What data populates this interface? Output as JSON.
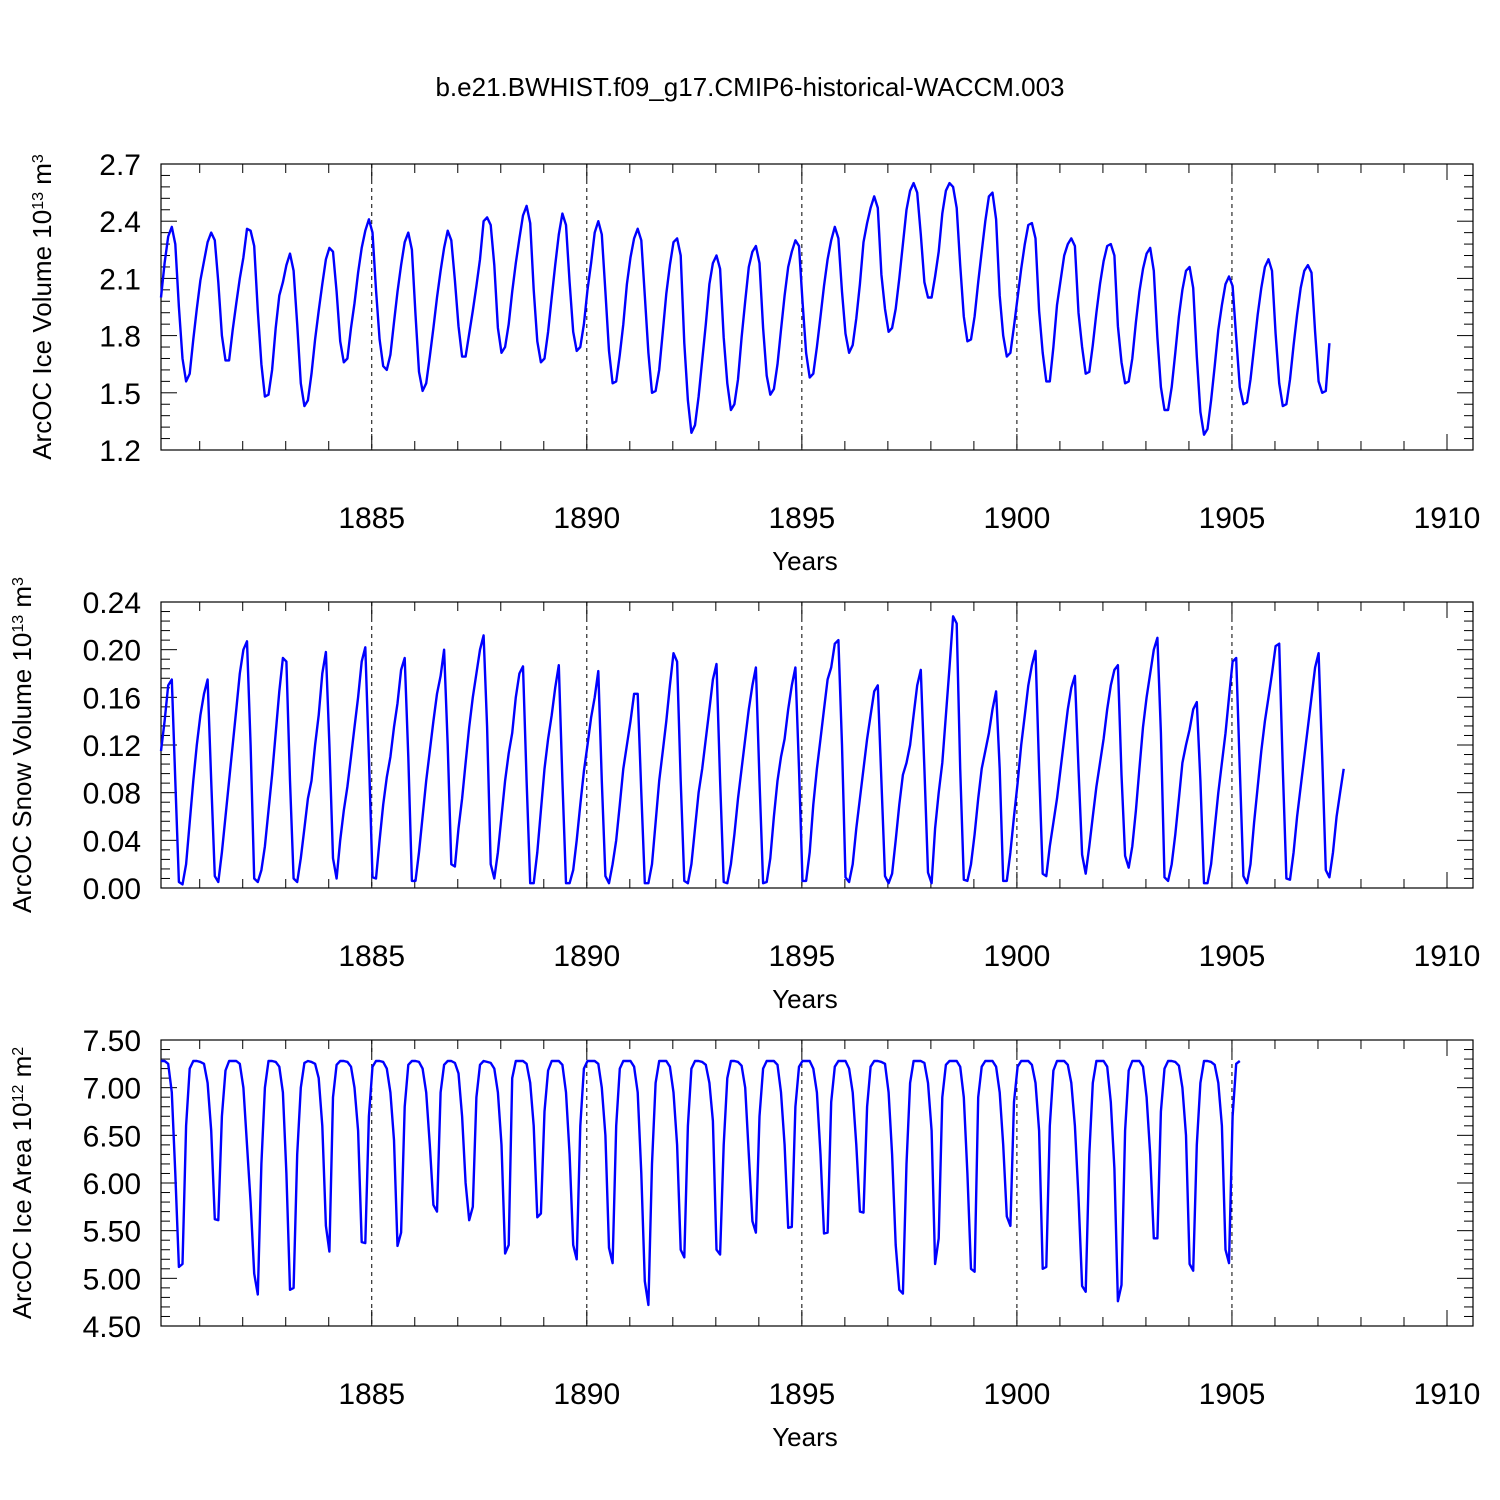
{
  "title": "b.e21.BWHIST.f09_g17.CMIP6-historical-WACCM.003",
  "series_color": "#0000ff",
  "chart_data": [
    {
      "type": "line",
      "name": "ice-volume",
      "title": "b.e21.BWHIST.f09_g17.CMIP6-historical-WACCM.003",
      "ylabel": "ArcOC Ice Volume 10",
      "ylabel_exp": "13",
      "ylabel_unit": " m",
      "ylabel_unit_exp": "3",
      "xlabel": "Years",
      "xlim": [
        1880.1,
        1910.0
      ],
      "ylim": [
        1.2,
        2.7
      ],
      "yticks": [
        "1.2",
        "1.5",
        "1.8",
        "2.1",
        "2.4",
        "2.7"
      ],
      "xticks": [
        "1885",
        "1890",
        "1895",
        "1900",
        "1905",
        "1910"
      ],
      "grid_x": [
        1885,
        1890,
        1895,
        1900,
        1905
      ],
      "x_start": 1880.1,
      "x_step": 0.08333,
      "values": [
        2.0,
        2.18,
        2.32,
        2.37,
        2.28,
        1.95,
        1.68,
        1.56,
        1.6,
        1.78,
        1.94,
        2.09,
        2.19,
        2.29,
        2.34,
        2.3,
        2.08,
        1.8,
        1.67,
        1.67,
        1.83,
        1.97,
        2.1,
        2.21,
        2.36,
        2.35,
        2.27,
        1.93,
        1.65,
        1.48,
        1.49,
        1.62,
        1.84,
        2.01,
        2.08,
        2.17,
        2.23,
        2.14,
        1.86,
        1.55,
        1.43,
        1.46,
        1.6,
        1.78,
        1.93,
        2.07,
        2.2,
        2.26,
        2.24,
        2.03,
        1.77,
        1.66,
        1.68,
        1.84,
        1.97,
        2.13,
        2.26,
        2.35,
        2.41,
        2.34,
        2.04,
        1.78,
        1.64,
        1.62,
        1.7,
        1.87,
        2.03,
        2.17,
        2.29,
        2.34,
        2.25,
        1.91,
        1.61,
        1.51,
        1.55,
        1.69,
        1.84,
        2.0,
        2.14,
        2.26,
        2.35,
        2.3,
        2.09,
        1.85,
        1.69,
        1.69,
        1.81,
        1.93,
        2.06,
        2.2,
        2.4,
        2.42,
        2.38,
        2.17,
        1.84,
        1.71,
        1.74,
        1.86,
        2.03,
        2.18,
        2.31,
        2.43,
        2.48,
        2.39,
        2.04,
        1.77,
        1.66,
        1.68,
        1.82,
        2.0,
        2.17,
        2.33,
        2.44,
        2.38,
        2.08,
        1.82,
        1.72,
        1.74,
        1.86,
        2.04,
        2.18,
        2.34,
        2.4,
        2.33,
        2.03,
        1.72,
        1.55,
        1.56,
        1.7,
        1.86,
        2.07,
        2.21,
        2.31,
        2.36,
        2.3,
        2.01,
        1.71,
        1.5,
        1.51,
        1.62,
        1.82,
        2.02,
        2.17,
        2.29,
        2.31,
        2.22,
        1.76,
        1.46,
        1.29,
        1.33,
        1.48,
        1.67,
        1.86,
        2.07,
        2.18,
        2.22,
        2.15,
        1.79,
        1.55,
        1.41,
        1.44,
        1.57,
        1.79,
        1.98,
        2.16,
        2.24,
        2.27,
        2.18,
        1.84,
        1.59,
        1.49,
        1.52,
        1.65,
        1.83,
        2.01,
        2.16,
        2.24,
        2.3,
        2.27,
        1.98,
        1.71,
        1.58,
        1.6,
        1.74,
        1.9,
        2.06,
        2.2,
        2.3,
        2.37,
        2.31,
        2.03,
        1.81,
        1.71,
        1.75,
        1.89,
        2.07,
        2.29,
        2.39,
        2.47,
        2.53,
        2.47,
        2.12,
        1.94,
        1.82,
        1.84,
        1.94,
        2.1,
        2.28,
        2.46,
        2.56,
        2.6,
        2.55,
        2.33,
        2.08,
        2.0,
        2.0,
        2.11,
        2.24,
        2.44,
        2.56,
        2.6,
        2.58,
        2.47,
        2.17,
        1.9,
        1.77,
        1.78,
        1.9,
        2.08,
        2.24,
        2.4,
        2.53,
        2.55,
        2.41,
        2.01,
        1.8,
        1.69,
        1.71,
        1.85,
        2.0,
        2.15,
        2.28,
        2.38,
        2.39,
        2.31,
        1.93,
        1.71,
        1.56,
        1.56,
        1.74,
        1.96,
        2.09,
        2.22,
        2.28,
        2.31,
        2.27,
        1.92,
        1.74,
        1.6,
        1.61,
        1.75,
        1.92,
        2.07,
        2.19,
        2.27,
        2.28,
        2.22,
        1.85,
        1.66,
        1.55,
        1.56,
        1.68,
        1.87,
        2.03,
        2.15,
        2.23,
        2.26,
        2.14,
        1.79,
        1.53,
        1.41,
        1.41,
        1.53,
        1.71,
        1.9,
        2.04,
        2.14,
        2.16,
        2.05,
        1.69,
        1.4,
        1.28,
        1.31,
        1.46,
        1.64,
        1.83,
        1.96,
        2.07,
        2.11,
        2.06,
        1.79,
        1.53,
        1.44,
        1.45,
        1.57,
        1.74,
        1.91,
        2.05,
        2.16,
        2.2,
        2.14,
        1.81,
        1.55,
        1.43,
        1.44,
        1.57,
        1.75,
        1.91,
        2.05,
        2.14,
        2.17,
        2.13,
        1.82,
        1.56,
        1.5,
        1.51,
        1.76
      ]
    },
    {
      "type": "line",
      "name": "snow-volume",
      "ylabel": "ArcOC Snow Volume 10",
      "ylabel_exp": "13",
      "ylabel_unit": " m",
      "ylabel_unit_exp": "3",
      "xlabel": "Years",
      "xlim": [
        1880.1,
        1910.0
      ],
      "ylim": [
        0.0,
        0.24
      ],
      "yticks": [
        "0.00",
        "0.04",
        "0.08",
        "0.12",
        "0.16",
        "0.20",
        "0.24"
      ],
      "xticks": [
        "1885",
        "1890",
        "1895",
        "1900",
        "1905",
        "1910"
      ],
      "grid_x": [
        1885,
        1890,
        1895,
        1900,
        1905
      ],
      "x_start": 1880.1,
      "x_step": 0.08333,
      "values": [
        0.115,
        0.14,
        0.17,
        0.175,
        0.09,
        0.005,
        0.003,
        0.02,
        0.055,
        0.09,
        0.12,
        0.145,
        0.163,
        0.175,
        0.09,
        0.01,
        0.005,
        0.03,
        0.06,
        0.09,
        0.12,
        0.15,
        0.18,
        0.2,
        0.207,
        0.12,
        0.008,
        0.005,
        0.015,
        0.035,
        0.065,
        0.095,
        0.13,
        0.165,
        0.193,
        0.19,
        0.09,
        0.008,
        0.005,
        0.025,
        0.05,
        0.075,
        0.09,
        0.12,
        0.145,
        0.18,
        0.198,
        0.12,
        0.025,
        0.008,
        0.04,
        0.065,
        0.085,
        0.11,
        0.135,
        0.16,
        0.19,
        0.202,
        0.11,
        0.009,
        0.008,
        0.04,
        0.07,
        0.093,
        0.11,
        0.135,
        0.155,
        0.183,
        0.193,
        0.11,
        0.006,
        0.006,
        0.03,
        0.06,
        0.09,
        0.115,
        0.14,
        0.163,
        0.178,
        0.2,
        0.12,
        0.02,
        0.018,
        0.05,
        0.075,
        0.105,
        0.135,
        0.16,
        0.18,
        0.2,
        0.212,
        0.135,
        0.02,
        0.008,
        0.03,
        0.06,
        0.09,
        0.113,
        0.13,
        0.16,
        0.18,
        0.186,
        0.09,
        0.004,
        0.004,
        0.03,
        0.065,
        0.1,
        0.125,
        0.145,
        0.168,
        0.187,
        0.09,
        0.004,
        0.004,
        0.015,
        0.04,
        0.07,
        0.098,
        0.12,
        0.143,
        0.16,
        0.182,
        0.09,
        0.01,
        0.004,
        0.02,
        0.04,
        0.07,
        0.1,
        0.12,
        0.14,
        0.163,
        0.163,
        0.08,
        0.004,
        0.004,
        0.02,
        0.055,
        0.09,
        0.115,
        0.14,
        0.17,
        0.197,
        0.19,
        0.09,
        0.006,
        0.004,
        0.02,
        0.05,
        0.08,
        0.1,
        0.125,
        0.15,
        0.175,
        0.188,
        0.09,
        0.005,
        0.004,
        0.02,
        0.045,
        0.075,
        0.1,
        0.125,
        0.15,
        0.17,
        0.185,
        0.09,
        0.004,
        0.005,
        0.025,
        0.06,
        0.09,
        0.11,
        0.125,
        0.15,
        0.17,
        0.185,
        0.1,
        0.006,
        0.006,
        0.03,
        0.07,
        0.1,
        0.125,
        0.15,
        0.175,
        0.185,
        0.205,
        0.208,
        0.12,
        0.009,
        0.005,
        0.02,
        0.05,
        0.075,
        0.1,
        0.125,
        0.145,
        0.165,
        0.17,
        0.09,
        0.01,
        0.004,
        0.012,
        0.04,
        0.07,
        0.095,
        0.105,
        0.12,
        0.145,
        0.17,
        0.183,
        0.1,
        0.013,
        0.004,
        0.05,
        0.08,
        0.105,
        0.145,
        0.185,
        0.228,
        0.222,
        0.1,
        0.007,
        0.006,
        0.02,
        0.045,
        0.075,
        0.1,
        0.115,
        0.13,
        0.15,
        0.165,
        0.1,
        0.006,
        0.006,
        0.03,
        0.06,
        0.088,
        0.12,
        0.145,
        0.17,
        0.187,
        0.199,
        0.1,
        0.012,
        0.01,
        0.035,
        0.055,
        0.075,
        0.1,
        0.125,
        0.15,
        0.168,
        0.178,
        0.1,
        0.028,
        0.012,
        0.035,
        0.06,
        0.085,
        0.105,
        0.125,
        0.15,
        0.17,
        0.183,
        0.187,
        0.095,
        0.027,
        0.017,
        0.035,
        0.065,
        0.1,
        0.135,
        0.16,
        0.18,
        0.2,
        0.21,
        0.13,
        0.009,
        0.006,
        0.02,
        0.045,
        0.075,
        0.105,
        0.12,
        0.133,
        0.15,
        0.156,
        0.09,
        0.004,
        0.004,
        0.02,
        0.05,
        0.08,
        0.105,
        0.13,
        0.16,
        0.19,
        0.193,
        0.1,
        0.01,
        0.004,
        0.02,
        0.055,
        0.085,
        0.115,
        0.14,
        0.16,
        0.18,
        0.203,
        0.205,
        0.1,
        0.008,
        0.007,
        0.03,
        0.06,
        0.085,
        0.11,
        0.135,
        0.16,
        0.185,
        0.197,
        0.11,
        0.015,
        0.009,
        0.03,
        0.06,
        0.08,
        0.1
      ]
    },
    {
      "type": "line",
      "name": "ice-area",
      "ylabel": "ArcOC Ice Area 10",
      "ylabel_exp": "12",
      "ylabel_unit": " m",
      "ylabel_unit_exp": "2",
      "xlabel": "Years",
      "xlim": [
        1880.1,
        1910.0
      ],
      "ylim": [
        4.5,
        7.5
      ],
      "yticks": [
        "4.50",
        "5.00",
        "5.50",
        "6.00",
        "6.50",
        "7.00",
        "7.50"
      ],
      "xticks": [
        "1885",
        "1890",
        "1895",
        "1900",
        "1905",
        "1910"
      ],
      "grid_x": [
        1885,
        1890,
        1895,
        1900,
        1905
      ],
      "x_start": 1880.1,
      "x_step": 0.08333,
      "values": [
        7.28,
        7.28,
        7.25,
        6.95,
        6.1,
        5.12,
        5.15,
        6.6,
        7.2,
        7.28,
        7.28,
        7.27,
        7.25,
        7.05,
        6.55,
        5.62,
        5.61,
        6.7,
        7.18,
        7.28,
        7.28,
        7.28,
        7.25,
        7.0,
        6.4,
        5.8,
        5.05,
        4.83,
        6.2,
        7.0,
        7.28,
        7.28,
        7.27,
        7.22,
        6.95,
        6.1,
        4.88,
        4.9,
        6.3,
        7.0,
        7.26,
        7.28,
        7.27,
        7.25,
        7.1,
        6.6,
        5.55,
        5.28,
        6.9,
        7.24,
        7.28,
        7.28,
        7.27,
        7.22,
        7.0,
        6.55,
        5.38,
        5.37,
        6.7,
        7.22,
        7.28,
        7.28,
        7.27,
        7.2,
        6.95,
        6.45,
        5.34,
        5.48,
        6.8,
        7.24,
        7.28,
        7.28,
        7.27,
        7.2,
        6.95,
        6.4,
        5.77,
        5.7,
        6.95,
        7.24,
        7.28,
        7.28,
        7.26,
        7.15,
        6.7,
        6.0,
        5.61,
        5.75,
        6.9,
        7.24,
        7.28,
        7.27,
        7.26,
        7.2,
        6.95,
        6.4,
        5.26,
        5.35,
        7.1,
        7.28,
        7.28,
        7.28,
        7.25,
        7.05,
        6.6,
        5.64,
        5.68,
        6.75,
        7.18,
        7.28,
        7.28,
        7.28,
        7.24,
        6.95,
        6.3,
        5.35,
        5.2,
        6.6,
        7.2,
        7.28,
        7.28,
        7.28,
        7.25,
        7.0,
        6.5,
        5.32,
        5.16,
        6.6,
        7.2,
        7.28,
        7.28,
        7.28,
        7.22,
        6.95,
        6.1,
        4.97,
        4.72,
        6.2,
        7.05,
        7.28,
        7.28,
        7.28,
        7.22,
        6.95,
        6.4,
        5.3,
        5.22,
        6.6,
        7.2,
        7.28,
        7.28,
        7.27,
        7.24,
        7.05,
        6.65,
        5.3,
        5.25,
        6.4,
        7.1,
        7.28,
        7.28,
        7.27,
        7.23,
        7.0,
        6.3,
        5.6,
        5.48,
        6.7,
        7.2,
        7.28,
        7.28,
        7.28,
        7.24,
        6.95,
        6.4,
        5.53,
        5.54,
        6.8,
        7.22,
        7.28,
        7.28,
        7.28,
        7.2,
        6.95,
        6.3,
        5.47,
        5.48,
        6.85,
        7.22,
        7.28,
        7.28,
        7.28,
        7.2,
        6.95,
        6.4,
        5.7,
        5.69,
        6.8,
        7.22,
        7.28,
        7.28,
        7.27,
        7.25,
        6.95,
        6.3,
        5.35,
        4.88,
        4.84,
        6.2,
        7.05,
        7.28,
        7.28,
        7.28,
        7.26,
        7.05,
        6.55,
        5.15,
        5.42,
        6.9,
        7.24,
        7.28,
        7.28,
        7.28,
        7.22,
        6.9,
        6.1,
        5.1,
        5.07,
        6.9,
        7.22,
        7.28,
        7.28,
        7.28,
        7.22,
        6.95,
        6.4,
        5.65,
        5.55,
        6.85,
        7.22,
        7.28,
        7.28,
        7.28,
        7.24,
        7.05,
        6.55,
        5.1,
        5.12,
        6.6,
        7.18,
        7.28,
        7.28,
        7.28,
        7.24,
        7.05,
        6.6,
        5.85,
        4.92,
        4.86,
        6.3,
        7.05,
        7.28,
        7.28,
        7.28,
        7.22,
        6.85,
        6.15,
        4.76,
        4.93,
        6.55,
        7.18,
        7.28,
        7.28,
        7.28,
        7.22,
        6.9,
        6.3,
        5.42,
        5.42,
        6.75,
        7.2,
        7.28,
        7.28,
        7.27,
        7.23,
        7.0,
        6.5,
        5.15,
        5.08,
        6.4,
        7.05,
        7.28,
        7.28,
        7.27,
        7.24,
        7.05,
        6.6,
        5.3,
        5.16,
        6.7,
        7.25,
        7.28
      ]
    }
  ]
}
